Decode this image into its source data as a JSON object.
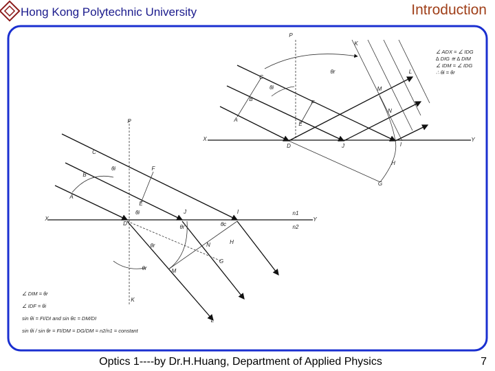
{
  "header": {
    "institution": "Hong Kong Polytechnic University",
    "section": "Introduction"
  },
  "footer": {
    "credit": "Optics 1----by Dr.H.Huang, Department of Applied Physics",
    "page": "7"
  },
  "diagram_top": {
    "labels": [
      "P",
      "K",
      "L",
      "C",
      "θr",
      "θi",
      "M",
      "B",
      "F",
      "N",
      "A",
      "E",
      "X",
      "D",
      "J",
      "I",
      "Y",
      "H",
      "G"
    ],
    "notes": [
      "∠ ADX = ∠ IDG",
      "∆ DIG ≅ ∆ DIM",
      "∠ IDM = ∠ IDG",
      "∴ θi = θr"
    ]
  },
  "diagram_bottom": {
    "labels": [
      "P",
      "C",
      "F",
      "θi",
      "B",
      "A",
      "E",
      "θi",
      "X",
      "D",
      "J",
      "I",
      "Y",
      "n1",
      "n2",
      "θr",
      "θc",
      "H",
      "N",
      "θr",
      "G",
      "θr",
      "M",
      "K",
      "L"
    ],
    "notes": [
      "∠ DIM = θr",
      "∠ IDF = θi",
      "sin θi = FI/DI   and   sin θc = DM/DI",
      "sin θi / sin θr = FI/DM = DG/DM = n2/n1 = constant"
    ]
  }
}
